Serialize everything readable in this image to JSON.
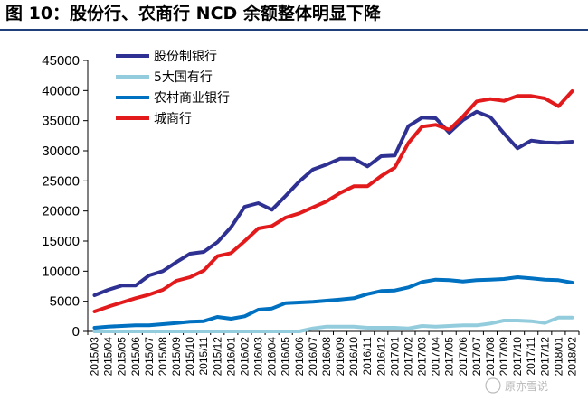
{
  "figure": {
    "title": "图 10：股份行、农商行 NCD 余额整体明显下降"
  },
  "chart_data": {
    "type": "line",
    "title": "图 10：股份行、农商行 NCD 余额整体明显下降",
    "xlabel": "",
    "ylabel": "",
    "ylim": [
      0,
      45000
    ],
    "yticks": [
      "0",
      "5000",
      "10000",
      "15000",
      "20000",
      "25000",
      "30000",
      "35000",
      "40000",
      "45000"
    ],
    "grid": false,
    "legend_position": "top-left",
    "x": [
      "2015/03",
      "2015/04",
      "2015/05",
      "2015/06",
      "2015/07",
      "2015/08",
      "2015/09",
      "2015/10",
      "2015/11",
      "2015/12",
      "2016/01",
      "2016/02",
      "2016/03",
      "2016/04",
      "2016/05",
      "2016/06",
      "2016/07",
      "2016/08",
      "2016/09",
      "2016/10",
      "2016/11",
      "2016/12",
      "2017/01",
      "2017/02",
      "2017/03",
      "2017/04",
      "2017/05",
      "2017/06",
      "2017/07",
      "2017/08",
      "2017/09",
      "2017/10",
      "2017/11",
      "2017/12",
      "2018/01",
      "2018/02"
    ],
    "series": [
      {
        "name": "股份制银行",
        "color": "#2e3192",
        "values": [
          6000,
          6900,
          7600,
          7600,
          9300,
          10000,
          11500,
          12900,
          13200,
          14800,
          17300,
          20700,
          21300,
          20200,
          22500,
          24900,
          26900,
          27700,
          28700,
          28700,
          27400,
          29100,
          29200,
          34100,
          35500,
          35400,
          33000,
          35100,
          36500,
          35600,
          32900,
          30400,
          31700,
          31400,
          31300,
          31500
        ]
      },
      {
        "name": "5大国有行",
        "color": "#93cddd",
        "values": [
          0,
          0,
          0,
          0,
          0,
          0,
          0,
          0,
          0,
          0,
          0,
          0,
          0,
          0,
          0,
          0,
          500,
          800,
          800,
          800,
          600,
          600,
          600,
          500,
          900,
          800,
          900,
          1000,
          1000,
          1300,
          1800,
          1800,
          1700,
          1400,
          2300,
          2300
        ]
      },
      {
        "name": "农村商业银行",
        "color": "#0070c0",
        "values": [
          600,
          800,
          900,
          1000,
          1000,
          1200,
          1400,
          1600,
          1700,
          2400,
          2100,
          2500,
          3600,
          3800,
          4700,
          4800,
          4900,
          5100,
          5300,
          5500,
          6200,
          6700,
          6800,
          7300,
          8200,
          8600,
          8500,
          8300,
          8500,
          8600,
          8700,
          9000,
          8800,
          8600,
          8500,
          8100
        ]
      },
      {
        "name": "城商行",
        "color": "#e31a1c",
        "values": [
          3300,
          4100,
          4800,
          5500,
          6100,
          6900,
          8400,
          9000,
          10100,
          12500,
          13000,
          15000,
          17100,
          17500,
          18900,
          19600,
          20600,
          21600,
          23000,
          24100,
          24100,
          25800,
          27200,
          31300,
          34000,
          34300,
          33500,
          35700,
          38200,
          38600,
          38300,
          39100,
          39100,
          38700,
          37400,
          39900
        ]
      }
    ]
  },
  "watermark": {
    "text": "原亦雪说"
  }
}
